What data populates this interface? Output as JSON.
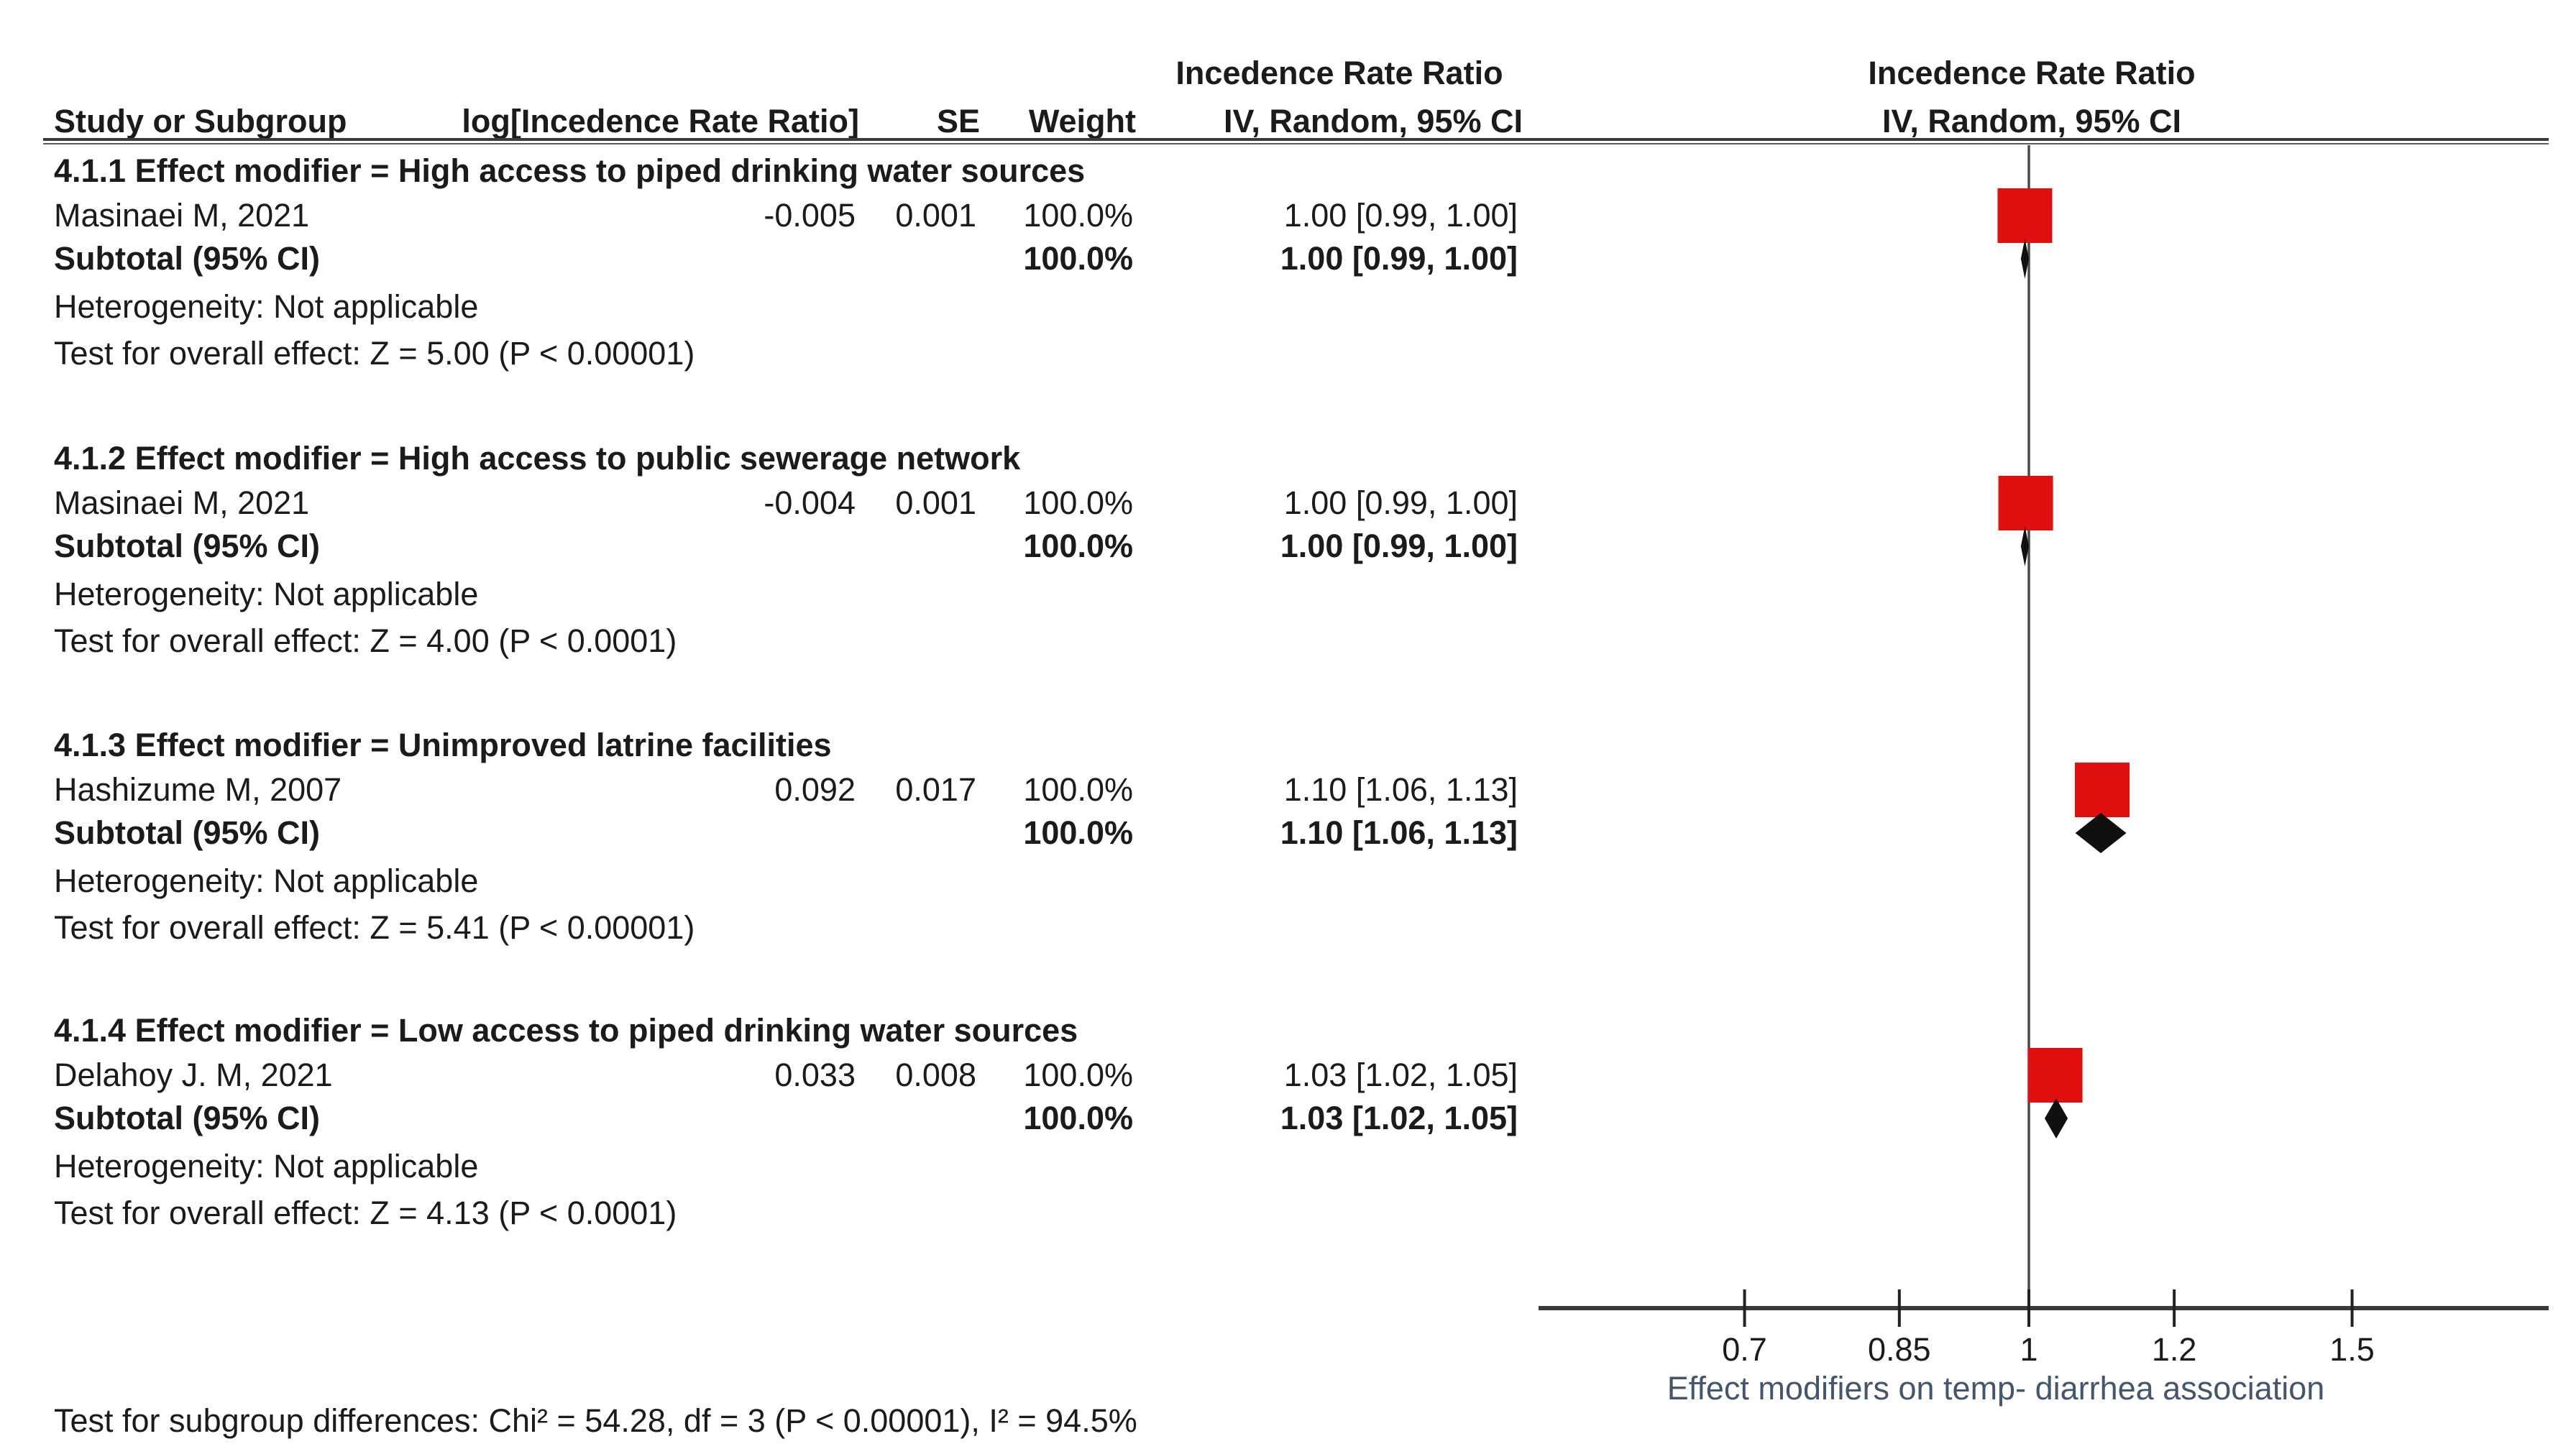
{
  "table": {
    "columns": {
      "study": "Study or Subgroup",
      "log_effect": "log[Incedence Rate Ratio]",
      "se": "SE",
      "weight": "Weight",
      "effect_line1": "Incedence Rate Ratio",
      "effect_line2": "IV, Random, 95% CI"
    },
    "sections": [
      {
        "title": "4.1.1 Effect modifier = High access to piped drinking water sources",
        "studies": [
          {
            "name": "Masinaei M, 2021",
            "log_irr": "-0.005",
            "se": "0.001",
            "weight": "100.0%",
            "ci": "1.00 [0.99, 1.00]"
          }
        ],
        "subtotal": {
          "label": "Subtotal (95% CI)",
          "weight": "100.0%",
          "ci": "1.00 [0.99, 1.00]"
        },
        "heterogeneity": "Heterogeneity: Not applicable",
        "overall_effect": "Test for overall effect: Z = 5.00 (P < 0.00001)"
      },
      {
        "title": "4.1.2 Effect modifier = High access to public sewerage network",
        "studies": [
          {
            "name": "Masinaei M, 2021",
            "log_irr": "-0.004",
            "se": "0.001",
            "weight": "100.0%",
            "ci": "1.00 [0.99, 1.00]"
          }
        ],
        "subtotal": {
          "label": "Subtotal (95% CI)",
          "weight": "100.0%",
          "ci": "1.00 [0.99, 1.00]"
        },
        "heterogeneity": "Heterogeneity: Not applicable",
        "overall_effect": "Test for overall effect: Z = 4.00 (P < 0.0001)"
      },
      {
        "title": "4.1.3 Effect modifier = Unimproved latrine facilities",
        "studies": [
          {
            "name": "Hashizume M, 2007",
            "log_irr": "0.092",
            "se": "0.017",
            "weight": "100.0%",
            "ci": "1.10 [1.06, 1.13]"
          }
        ],
        "subtotal": {
          "label": "Subtotal (95% CI)",
          "weight": "100.0%",
          "ci": "1.10 [1.06, 1.13]"
        },
        "heterogeneity": "Heterogeneity: Not applicable",
        "overall_effect": "Test for overall effect: Z = 5.41 (P < 0.00001)"
      },
      {
        "title": "4.1.4 Effect modifier = Low access to piped drinking water sources",
        "studies": [
          {
            "name": "Delahoy J. M, 2021",
            "log_irr": "0.033",
            "se": "0.008",
            "weight": "100.0%",
            "ci": "1.03 [1.02, 1.05]"
          }
        ],
        "subtotal": {
          "label": "Subtotal (95% CI)",
          "weight": "100.0%",
          "ci": "1.03 [1.02, 1.05]"
        },
        "heterogeneity": "Heterogeneity: Not applicable",
        "overall_effect": "Test for overall effect: Z = 4.13 (P < 0.0001)"
      }
    ],
    "footer": "Test for subgroup differences: Chi² = 54.28, df = 3 (P < 0.00001), I² = 94.5%"
  },
  "plot": {
    "header_line1": "Incedence Rate Ratio",
    "header_line2": "IV, Random, 95% CI",
    "axis_ticks": [
      "0.7",
      "0.85",
      "1",
      "1.2",
      "1.5"
    ],
    "axis_tick_values": [
      0.7,
      0.85,
      1,
      1.2,
      1.5
    ],
    "caption": "Effect modifiers on temp-  diarrhea association",
    "null_value": 1
  },
  "colors": {
    "marker_red": "#e01010",
    "diamond_black": "#101010",
    "rule_gray": "#3a3a3a",
    "caption_blue_gray": "#44566b",
    "text": "#1b1b1b"
  },
  "chart_data": {
    "type": "scatter",
    "subtype": "forest-plot-meta-analysis",
    "title": "Incedence Rate Ratio — IV, Random, 95% CI",
    "x_scale": "log",
    "x_ticks": [
      0.7,
      0.85,
      1,
      1.2,
      1.5
    ],
    "xlabel": "Effect modifiers on temp-  diarrhea association",
    "null_line": 1,
    "groups": [
      {
        "subgroup": "4.1.1 Effect modifier = High access to piped drinking water sources",
        "study": "Masinaei M, 2021",
        "log_irr": -0.005,
        "se": 0.001,
        "weight_pct": 100.0,
        "irr": 1.0,
        "ci": [
          0.99,
          1.0
        ],
        "subtotal": {
          "irr": 1.0,
          "ci": [
            0.99,
            1.0
          ],
          "weight_pct": 100.0
        },
        "heterogeneity": "Not applicable",
        "overall_effect": {
          "z": 5.0,
          "p": "P < 0.00001"
        }
      },
      {
        "subgroup": "4.1.2 Effect modifier = High access to public sewerage network",
        "study": "Masinaei M, 2021",
        "log_irr": -0.004,
        "se": 0.001,
        "weight_pct": 100.0,
        "irr": 1.0,
        "ci": [
          0.99,
          1.0
        ],
        "subtotal": {
          "irr": 1.0,
          "ci": [
            0.99,
            1.0
          ],
          "weight_pct": 100.0
        },
        "heterogeneity": "Not applicable",
        "overall_effect": {
          "z": 4.0,
          "p": "P < 0.0001"
        }
      },
      {
        "subgroup": "4.1.3 Effect modifier = Unimproved latrine facilities",
        "study": "Hashizume M, 2007",
        "log_irr": 0.092,
        "se": 0.017,
        "weight_pct": 100.0,
        "irr": 1.1,
        "ci": [
          1.06,
          1.13
        ],
        "subtotal": {
          "irr": 1.1,
          "ci": [
            1.06,
            1.13
          ],
          "weight_pct": 100.0
        },
        "heterogeneity": "Not applicable",
        "overall_effect": {
          "z": 5.41,
          "p": "P < 0.00001"
        }
      },
      {
        "subgroup": "4.1.4 Effect modifier = Low access to piped drinking water sources",
        "study": "Delahoy J. M, 2021",
        "log_irr": 0.033,
        "se": 0.008,
        "weight_pct": 100.0,
        "irr": 1.03,
        "ci": [
          1.02,
          1.05
        ],
        "subtotal": {
          "irr": 1.03,
          "ci": [
            1.02,
            1.05
          ],
          "weight_pct": 100.0
        },
        "heterogeneity": "Not applicable",
        "overall_effect": {
          "z": 4.13,
          "p": "P < 0.0001"
        }
      }
    ],
    "subgroup_differences": {
      "chi2": 54.28,
      "df": 3,
      "p": "P < 0.00001",
      "i2_pct": 94.5
    }
  }
}
